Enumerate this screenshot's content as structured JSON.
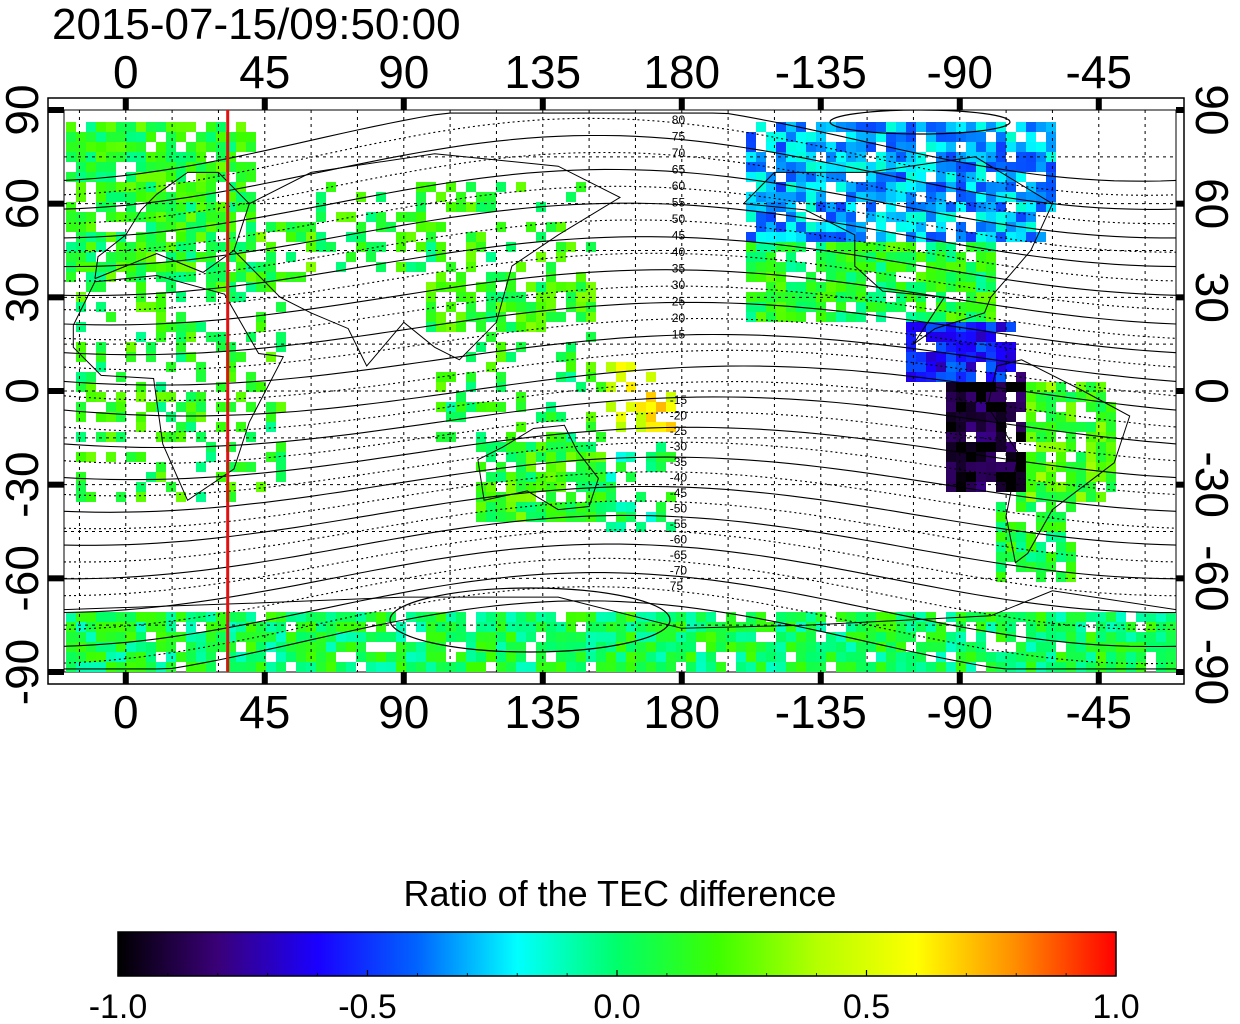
{
  "timestamp": "2015-07-15/09:50:00",
  "map": {
    "lon_ticks_top": [
      "0",
      "45",
      "90",
      "135",
      "180",
      "-135",
      "-90",
      "-45"
    ],
    "lon_ticks_bottom": [
      "0",
      "45",
      "90",
      "135",
      "180",
      "-135",
      "-90",
      "-45"
    ],
    "lon_tick_values": [
      0,
      45,
      90,
      135,
      180,
      225,
      270,
      315
    ],
    "lat_ticks_left": [
      "90",
      "60",
      "30",
      "0",
      "-30",
      "-60",
      "-90"
    ],
    "lat_ticks_right": [
      "90",
      "60",
      "30",
      "0",
      "-30",
      "-60",
      "-90"
    ],
    "lat_tick_values": [
      90,
      60,
      30,
      0,
      -30,
      -60,
      -90
    ],
    "lon_range": [
      -20,
      340
    ],
    "lat_range": [
      -90,
      90
    ],
    "contour_labels_north": [
      "80",
      "75",
      "70",
      "65",
      "60",
      "55",
      "50",
      "45",
      "40",
      "35",
      "30",
      "25",
      "20",
      "15"
    ],
    "contour_labels_south": [
      "-15",
      "-20",
      "-25",
      "-30",
      "-35",
      "-40",
      "-45",
      "-50",
      "-55",
      "-60",
      "-65",
      "-70",
      "75"
    ],
    "marker_line_lon": 33,
    "marker_line_color": "#e01010",
    "grid": true,
    "colors": {
      "ocean_bg": "#ffffff",
      "grid_line": "#000000",
      "coastline": "#000000"
    }
  },
  "colorbar": {
    "title": "Ratio of the TEC difference",
    "tick_labels": [
      "-1.0",
      "-0.5",
      "0.0",
      "0.5",
      "1.0"
    ],
    "tick_values": [
      -1.0,
      -0.5,
      0.0,
      0.5,
      1.0
    ],
    "colormap": [
      "#000000",
      "#3a0078",
      "#1a00ff",
      "#0064ff",
      "#00ffff",
      "#00ff6a",
      "#3cff00",
      "#b4ff00",
      "#ffff00",
      "#ff8c00",
      "#ff0000"
    ]
  }
}
